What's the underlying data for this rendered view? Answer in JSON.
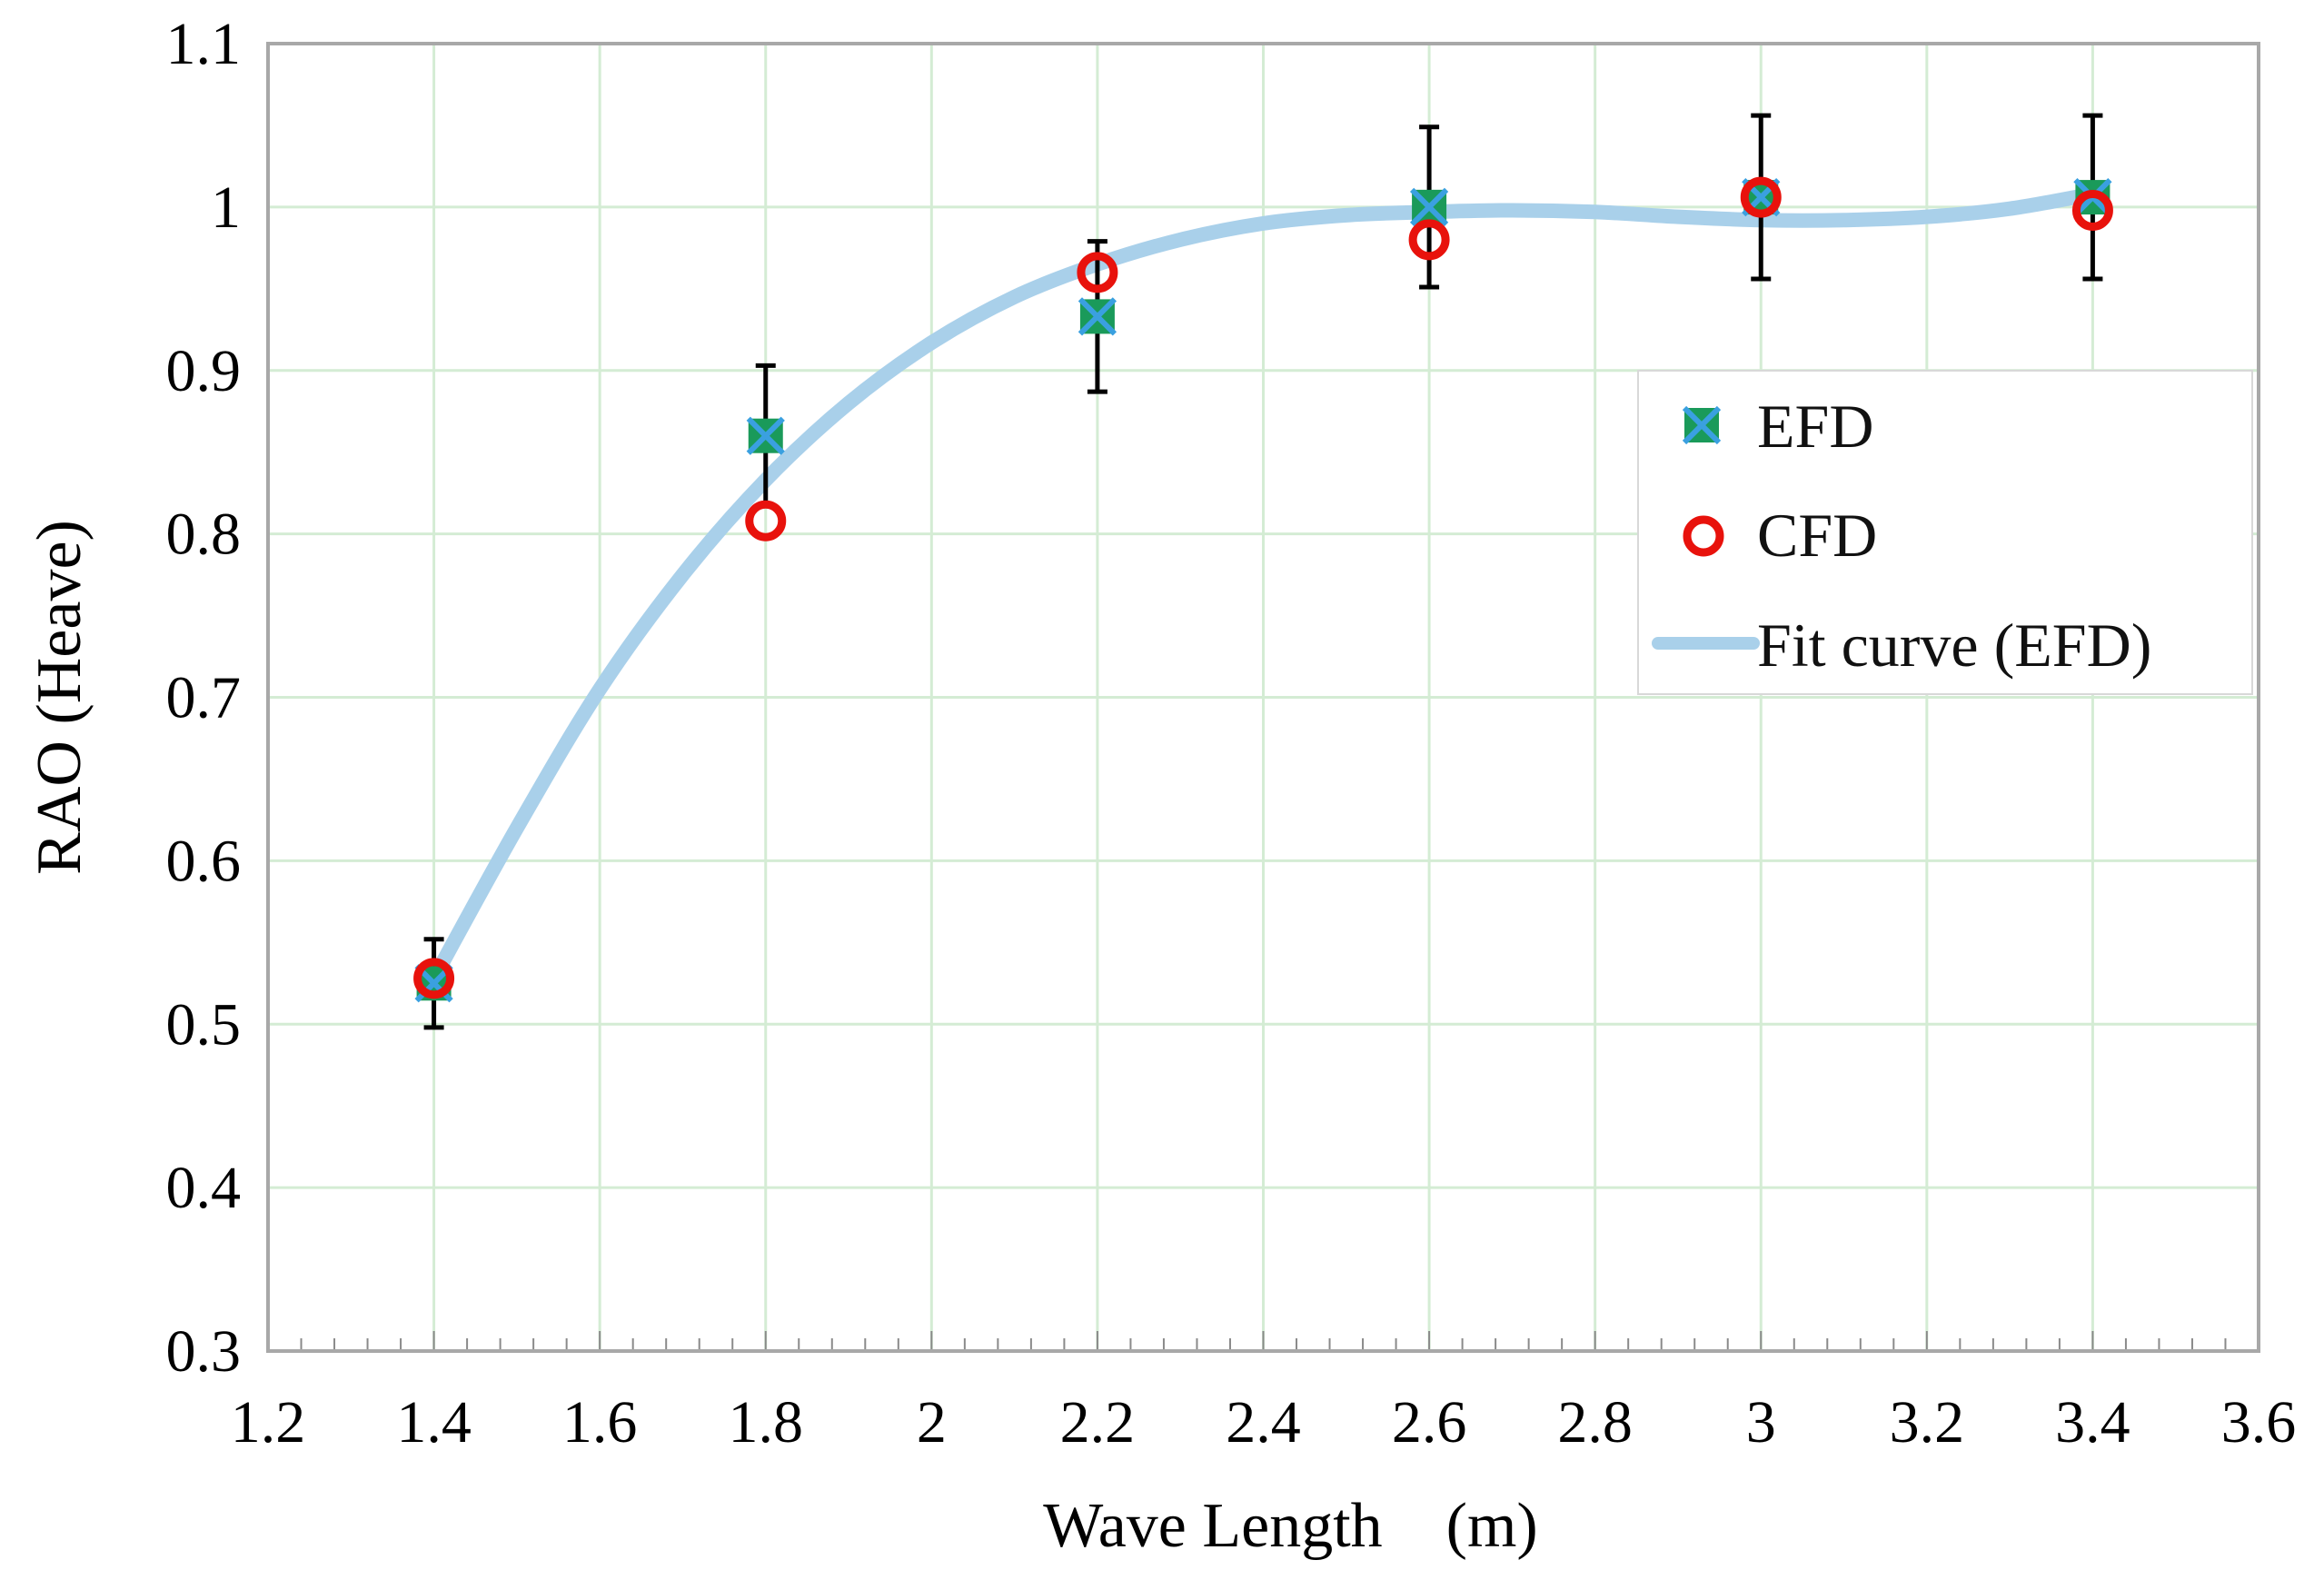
{
  "chart_data": {
    "type": "scatter",
    "title": "",
    "xlabel": "Wave Length　(m)",
    "ylabel": "RAO (Heave)",
    "xlim": [
      1.2,
      3.6
    ],
    "ylim": [
      0.3,
      1.1
    ],
    "x_ticks": [
      1.2,
      1.4,
      1.6,
      1.8,
      2,
      2.2,
      2.4,
      2.6,
      2.8,
      3,
      3.2,
      3.4,
      3.6
    ],
    "x_tick_labels": [
      "1.2",
      "1.4",
      "1.6",
      "1.8",
      "2",
      "2.2",
      "2.4",
      "2.6",
      "2.8",
      "3",
      "3.2",
      "3.4",
      "3.6"
    ],
    "y_ticks": [
      0.3,
      0.4,
      0.5,
      0.6,
      0.7,
      0.8,
      0.9,
      1.0,
      1.1
    ],
    "y_tick_labels": [
      "0.3",
      "0.4",
      "0.5",
      "0.6",
      "0.7",
      "0.8",
      "0.9",
      "1",
      "1.1"
    ],
    "grid": true,
    "legend_position": "right",
    "series": [
      {
        "name": "EFD",
        "marker": "square-x",
        "color": "#1a9a5a",
        "x": [
          1.4,
          1.8,
          2.2,
          2.6,
          3.0,
          3.4
        ],
        "y": [
          0.525,
          0.86,
          0.933,
          1.0,
          1.006,
          1.006
        ],
        "error": [
          0.027,
          0.043,
          0.046,
          0.049,
          0.05,
          0.05
        ]
      },
      {
        "name": "CFD",
        "marker": "circle-open",
        "color": "#e8120c",
        "x": [
          1.4,
          1.8,
          2.2,
          2.6,
          3.0,
          3.4
        ],
        "y": [
          0.528,
          0.808,
          0.96,
          0.98,
          1.006,
          0.998
        ]
      },
      {
        "name": "Fit curve (EFD)",
        "marker": "line",
        "color": "#a9d0ea",
        "x": [
          1.4,
          1.5,
          1.6,
          1.7,
          1.8,
          1.9,
          2.0,
          2.1,
          2.2,
          2.3,
          2.4,
          2.5,
          2.6,
          2.7,
          2.8,
          2.9,
          3.0,
          3.1,
          3.2,
          3.3,
          3.4
        ],
        "y": [
          0.528,
          0.62,
          0.705,
          0.775,
          0.833,
          0.88,
          0.917,
          0.945,
          0.965,
          0.98,
          0.99,
          0.995,
          0.997,
          0.998,
          0.997,
          0.994,
          0.992,
          0.992,
          0.994,
          0.999,
          1.008
        ]
      }
    ]
  },
  "colors": {
    "grid": "#d4ecd4",
    "frame": "#a8a8a8",
    "errorbar": "#000000",
    "efd_cross": "#3aa0e0"
  }
}
